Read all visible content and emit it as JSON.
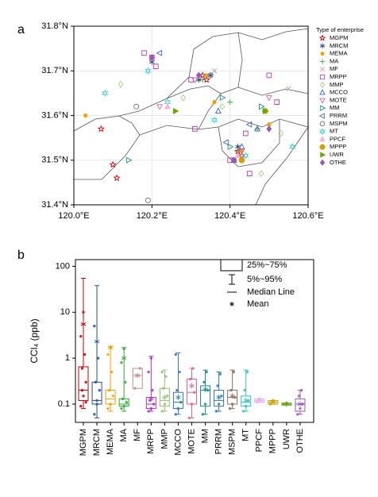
{
  "chart_data": [
    {
      "type": "scatter",
      "panel_label": "a",
      "legend_title": "Type of enterprise",
      "xlim": [
        120.0,
        120.6
      ],
      "ylim": [
        31.4,
        31.8
      ],
      "xticks": [
        {
          "value": 120.0,
          "label": "120.0°E"
        },
        {
          "value": 120.2,
          "label": "120.2°E"
        },
        {
          "value": 120.4,
          "label": "120.4°E"
        },
        {
          "value": 120.6,
          "label": "120.6°E"
        }
      ],
      "yticks": [
        {
          "value": 31.4,
          "label": "31.4°N"
        },
        {
          "value": 31.5,
          "label": "31.5°N"
        },
        {
          "value": 31.6,
          "label": "31.6°N"
        },
        {
          "value": 31.7,
          "label": "31.7°N"
        },
        {
          "value": 31.8,
          "label": "31.8°N"
        }
      ],
      "grid": true,
      "series": [
        {
          "name": "MGPM",
          "color": "#d00000",
          "marker": "star",
          "x": [
            120.33,
            120.34,
            120.42,
            120.43,
            120.1,
            120.11,
            120.07
          ],
          "y": [
            31.69,
            31.68,
            31.52,
            31.51,
            31.49,
            31.46,
            31.57
          ]
        },
        {
          "name": "MRCM",
          "color": "#1f3b7a",
          "marker": "asterisk",
          "x": [
            120.32,
            120.35,
            120.42,
            120.2
          ],
          "y": [
            31.68,
            31.69,
            31.53,
            31.72
          ]
        },
        {
          "name": "MEMA",
          "color": "#f5a000",
          "marker": "dot",
          "x": [
            120.03,
            120.34,
            120.43,
            120.5,
            120.36
          ],
          "y": [
            31.6,
            31.69,
            31.52,
            31.58,
            31.63
          ]
        },
        {
          "name": "MA",
          "color": "#3cb043",
          "marker": "plus",
          "x": [
            120.33,
            120.4,
            120.42,
            120.47
          ],
          "y": [
            31.68,
            31.63,
            31.52,
            31.57
          ]
        },
        {
          "name": "MF",
          "color": "#c9a0a0",
          "marker": "x",
          "x": [
            120.55,
            120.36,
            120.41
          ],
          "y": [
            31.66,
            31.7,
            31.5
          ]
        },
        {
          "name": "MRPP",
          "color": "#c040c0",
          "marker": "square",
          "x": [
            120.18,
            120.2,
            120.21,
            120.31,
            120.4,
            120.45,
            120.52,
            120.3,
            120.5,
            120.44
          ],
          "y": [
            31.74,
            31.73,
            31.71,
            31.57,
            31.5,
            31.47,
            31.63,
            31.68,
            31.69,
            31.56
          ]
        },
        {
          "name": "MMP",
          "color": "#a0d080",
          "marker": "diamond",
          "x": [
            120.12,
            120.28,
            120.53,
            120.48,
            120.38
          ],
          "y": [
            31.67,
            31.64,
            31.56,
            31.47,
            31.62
          ]
        },
        {
          "name": "MCCO",
          "color": "#3060c0",
          "marker": "triangle-up",
          "x": [
            120.41,
            120.43,
            120.37,
            120.47
          ],
          "y": [
            31.5,
            31.53,
            31.61,
            31.57
          ]
        },
        {
          "name": "MOTE",
          "color": "#e060a0",
          "marker": "triangle-down",
          "x": [
            120.31,
            120.43,
            120.5,
            120.22
          ],
          "y": [
            31.68,
            31.52,
            31.64,
            31.62
          ]
        },
        {
          "name": "MM",
          "color": "#1a8a8a",
          "marker": "triangle-right",
          "x": [
            120.14,
            120.38,
            120.4,
            120.48
          ],
          "y": [
            31.5,
            31.64,
            31.53,
            31.62
          ]
        },
        {
          "name": "PRRM",
          "color": "#4060c0",
          "marker": "triangle-left",
          "x": [
            120.22,
            120.39,
            120.45
          ],
          "y": [
            31.74,
            31.54,
            31.58
          ]
        },
        {
          "name": "MSPM",
          "color": "#707070",
          "marker": "circle",
          "x": [
            120.16,
            120.19,
            120.35,
            120.41
          ],
          "y": [
            31.62,
            31.41,
            31.69,
            31.5
          ]
        },
        {
          "name": "MT",
          "color": "#40d0d0",
          "marker": "hexagram",
          "x": [
            120.19,
            120.24,
            120.08,
            120.36,
            120.44,
            120.56
          ],
          "y": [
            31.7,
            31.63,
            31.65,
            31.59,
            31.51,
            31.53
          ]
        },
        {
          "name": "PPCF",
          "color": "#f8b0e0",
          "marker": "triangle-up-filled",
          "x": [
            120.24,
            120.42
          ],
          "y": [
            31.62,
            31.51
          ]
        },
        {
          "name": "MPPP",
          "color": "#d0a000",
          "marker": "hexagon-filled",
          "x": [
            120.49,
            120.43
          ],
          "y": [
            31.61,
            31.5
          ]
        },
        {
          "name": "UWR",
          "color": "#66aa00",
          "marker": "triangle-right-filled",
          "x": [
            120.26,
            120.49
          ],
          "y": [
            31.61,
            31.61
          ]
        },
        {
          "name": "OTHE",
          "color": "#9b59b6",
          "marker": "diamond-filled",
          "x": [
            120.2,
            120.32,
            120.41,
            120.5
          ],
          "y": [
            31.73,
            31.69,
            31.5,
            31.57
          ]
        }
      ]
    },
    {
      "type": "box",
      "panel_label": "b",
      "y_label": "CCl₄ (ppb)",
      "log_scale": true,
      "ylim": [
        0.04,
        140
      ],
      "yticks": [
        0.1,
        1,
        10,
        100
      ],
      "box_legend": {
        "box": "25%~75%",
        "whisker": "5%~95%",
        "median": "Median Line",
        "mean": "Mean"
      },
      "categories": [
        "MGPM",
        "MRCM",
        "MEMA",
        "MA",
        "MF",
        "MRPP",
        "MMP",
        "MCCO",
        "MOTE",
        "MM",
        "PRRM",
        "MSPM",
        "MT",
        "PPCF",
        "MPPP",
        "UWR",
        "OTHE"
      ],
      "colors": [
        "#c00000",
        "#1f4e99",
        "#f0a000",
        "#33aa33",
        "#c09090",
        "#b030c0",
        "#8fc070",
        "#2e75b6",
        "#e06090",
        "#1a8a8a",
        "#2e75b6",
        "#8c6d5a",
        "#33c0c0",
        "#f0a8f0",
        "#c8a000",
        "#66aa00",
        "#9b59b6"
      ],
      "p5": [
        0.08,
        0.05,
        0.07,
        0.07,
        null,
        0.07,
        0.07,
        0.06,
        0.05,
        0.06,
        0.07,
        0.08,
        0.07,
        null,
        null,
        null,
        0.06
      ],
      "q1": [
        0.12,
        0.1,
        0.1,
        0.09,
        0.22,
        0.08,
        0.09,
        0.08,
        0.1,
        0.09,
        0.09,
        0.1,
        0.09,
        0.11,
        0.1,
        0.095,
        0.07
      ],
      "median": [
        0.2,
        0.12,
        0.13,
        0.1,
        0.42,
        0.1,
        0.12,
        0.11,
        0.18,
        0.2,
        0.12,
        0.14,
        0.11,
        0.12,
        0.11,
        0.1,
        0.1
      ],
      "q3": [
        0.65,
        0.3,
        0.2,
        0.13,
        0.6,
        0.14,
        0.22,
        0.18,
        0.35,
        0.25,
        0.2,
        0.2,
        0.15,
        0.13,
        0.12,
        0.105,
        0.13
      ],
      "p95": [
        55,
        38,
        1.8,
        1.7,
        null,
        1.1,
        0.55,
        1.3,
        0.6,
        0.55,
        0.5,
        0.55,
        0.55,
        null,
        null,
        null,
        0.2
      ],
      "mean": [
        5.5,
        2.3,
        1.7,
        1.0,
        0.42,
        0.13,
        0.14,
        0.14,
        0.25,
        0.21,
        0.14,
        0.15,
        0.12,
        0.12,
        0.11,
        0.1,
        0.1
      ],
      "points": [
        [
          0.09,
          0.15,
          0.3,
          0.6,
          1.2,
          3,
          10,
          0.11,
          0.2
        ],
        [
          0.06,
          0.1,
          0.2,
          0.3,
          1,
          5,
          0.12
        ],
        [
          0.08,
          0.1,
          0.15,
          0.2,
          0.5,
          1.2,
          1.7
        ],
        [
          0.08,
          0.09,
          0.11,
          0.13,
          0.3,
          0.8,
          1.6
        ],
        [
          0.22,
          0.42,
          0.6
        ],
        [
          0.07,
          0.08,
          0.1,
          0.12,
          0.2,
          0.5,
          1.0
        ],
        [
          0.07,
          0.1,
          0.15,
          0.22,
          0.4,
          0.5
        ],
        [
          0.06,
          0.08,
          0.11,
          0.2,
          0.5,
          1.2
        ],
        [
          0.05,
          0.1,
          0.18,
          0.35,
          0.6
        ],
        [
          0.06,
          0.1,
          0.2,
          0.3,
          0.5
        ],
        [
          0.07,
          0.1,
          0.15,
          0.25,
          0.45
        ],
        [
          0.08,
          0.1,
          0.14,
          0.2,
          0.5
        ],
        [
          0.07,
          0.09,
          0.12,
          0.2,
          0.5
        ],
        [
          0.11,
          0.13
        ],
        [
          0.1,
          0.12
        ],
        [
          0.1,
          0.105
        ],
        [
          0.06,
          0.08,
          0.1,
          0.15,
          0.2
        ]
      ]
    }
  ]
}
